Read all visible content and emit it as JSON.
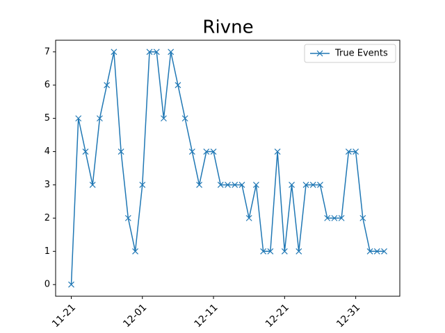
{
  "chart_data": {
    "type": "line",
    "title": "Rivne",
    "x": [
      "11-21",
      "11-22",
      "11-23",
      "11-24",
      "11-25",
      "11-26",
      "11-27",
      "11-28",
      "11-29",
      "11-30",
      "12-01",
      "12-02",
      "12-03",
      "12-04",
      "12-05",
      "12-06",
      "12-07",
      "12-08",
      "12-09",
      "12-10",
      "12-11",
      "12-12",
      "12-13",
      "12-14",
      "12-15",
      "12-16",
      "12-17",
      "12-18",
      "12-19",
      "12-20",
      "12-21",
      "12-22",
      "12-23",
      "12-24",
      "12-25",
      "12-26",
      "12-27",
      "12-28",
      "12-29",
      "12-30",
      "12-31",
      "01-01",
      "01-02",
      "01-03",
      "01-04"
    ],
    "series": [
      {
        "name": "True Events",
        "color": "#1f77b4",
        "values": [
          0,
          5,
          4,
          3,
          5,
          6,
          7,
          4,
          2,
          1,
          3,
          7,
          7,
          5,
          7,
          6,
          5,
          4,
          3,
          4,
          4,
          3,
          3,
          3,
          3,
          2,
          3,
          1,
          1,
          4,
          1,
          3,
          1,
          3,
          3,
          3,
          2,
          2,
          2,
          4,
          4,
          2,
          1,
          1,
          1
        ]
      }
    ],
    "xticks": [
      "11-21",
      "12-01",
      "12-11",
      "12-21",
      "12-31"
    ],
    "ylim": [
      -0.35,
      7.35
    ],
    "yticks": [
      0,
      1,
      2,
      3,
      4,
      5,
      6,
      7
    ],
    "legend": "upper right",
    "marker": "x"
  }
}
